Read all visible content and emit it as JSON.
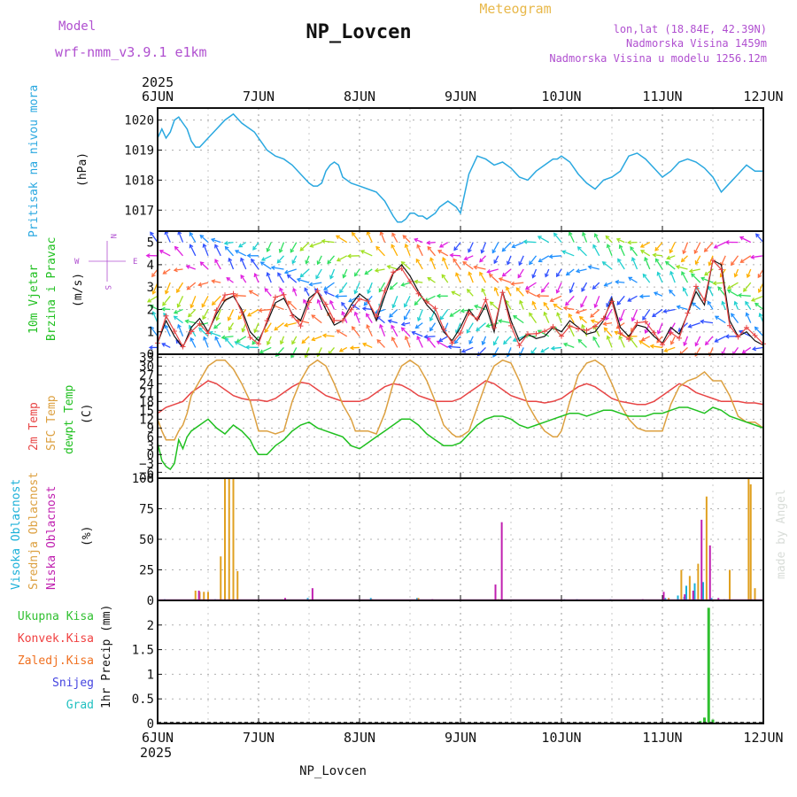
{
  "header": {
    "model_label": "Model",
    "model_name": "wrf-nmm_v3.9.1 e1km",
    "station": "NP_Lovcen",
    "product": "Meteogram",
    "coords": "lon,lat (18.84E, 42.39N)",
    "elevation": "Nadmorska Visina 1459m",
    "model_elevation": "Nadmorska Visina u modelu 1256.12m",
    "year": "2025",
    "footer_station": "NP_Lovcen",
    "watermark": "made by Angel"
  },
  "colors": {
    "pressure": "#2aa8e0",
    "temp2m": "#e84646",
    "sfc": "#dca040",
    "dew": "#20c020",
    "wind_obs": "#e84646",
    "high_cloud": "#1ab0d8",
    "mid_cloud": "#e0a020",
    "low_cloud": "#c020b0",
    "total_precip": "#30c030",
    "conv_precip": "#f04040",
    "frz_precip": "#f07020",
    "snow": "#4444e0",
    "hail": "#20c0c0",
    "title_purple": "#b050d0"
  },
  "chart_data": [
    {
      "type": "line",
      "panel": "pressure",
      "ylabel_left": "Pritisak na nivou mora",
      "ylabel": "(hPa)",
      "x_ticks": [
        "6JUN",
        "7JUN",
        "8JUN",
        "9JUN",
        "10JUN",
        "11JUN",
        "12JUN"
      ],
      "xlim": [
        0,
        144
      ],
      "ylim": [
        1016.3,
        1020.4
      ],
      "y_ticks": [
        1017,
        1018,
        1019,
        1020
      ],
      "grid": true,
      "series": [
        {
          "x": [
            0,
            1,
            2,
            3,
            4,
            5,
            6,
            7,
            8,
            9,
            10,
            12,
            14,
            16,
            18,
            20,
            22,
            23,
            24,
            25,
            26,
            27,
            28,
            30,
            32,
            34,
            36,
            37,
            38,
            39,
            40,
            41,
            42,
            43,
            44,
            46,
            48,
            50,
            52,
            54,
            56,
            57,
            58,
            59,
            60,
            61,
            62,
            63,
            64,
            65,
            66,
            67,
            68,
            69,
            70,
            71,
            72,
            74,
            76,
            78,
            80,
            82,
            84,
            86,
            88,
            90,
            92,
            94,
            95,
            96,
            97,
            98,
            100,
            102,
            104,
            106,
            108,
            110,
            112,
            114,
            116,
            118,
            120,
            122,
            124,
            126,
            128,
            130,
            132,
            134,
            136,
            138,
            140,
            142,
            144
          ],
          "y": [
            1019.4,
            1019.7,
            1019.4,
            1019.6,
            1020.0,
            1020.1,
            1019.9,
            1019.7,
            1019.3,
            1019.1,
            1019.1,
            1019.4,
            1019.7,
            1020.0,
            1020.2,
            1019.9,
            1019.7,
            1019.6,
            1019.4,
            1019.2,
            1019.0,
            1018.9,
            1018.8,
            1018.7,
            1018.5,
            1018.2,
            1017.9,
            1017.8,
            1017.8,
            1017.9,
            1018.3,
            1018.5,
            1018.6,
            1018.5,
            1018.1,
            1017.9,
            1017.8,
            1017.7,
            1017.6,
            1017.3,
            1016.8,
            1016.6,
            1016.6,
            1016.7,
            1016.9,
            1016.9,
            1016.8,
            1016.8,
            1016.7,
            1016.8,
            1016.9,
            1017.1,
            1017.2,
            1017.3,
            1017.2,
            1017.1,
            1016.9,
            1018.2,
            1018.8,
            1018.7,
            1018.5,
            1018.6,
            1018.4,
            1018.1,
            1018.0,
            1018.3,
            1018.5,
            1018.7,
            1018.7,
            1018.8,
            1018.7,
            1018.6,
            1018.2,
            1017.9,
            1017.7,
            1018.0,
            1018.1,
            1018.3,
            1018.8,
            1018.9,
            1018.7,
            1018.4,
            1018.1,
            1018.3,
            1018.6,
            1018.7,
            1018.6,
            1018.4,
            1018.1,
            1017.6,
            1017.9,
            1018.2,
            1018.5,
            1018.3,
            1018.3
          ]
        }
      ]
    },
    {
      "type": "line",
      "panel": "wind",
      "ylabel_left": [
        "10m Vjetar",
        "Brzina i Pravac"
      ],
      "ylabel": "(m/s)",
      "compass": {
        "n": "N",
        "s": "S",
        "e": "E",
        "w": "W"
      },
      "xlim": [
        0,
        144
      ],
      "ylim": [
        0,
        5.5
      ],
      "y_ticks": [
        0,
        1,
        2,
        3,
        4,
        5
      ],
      "grid": true,
      "series": [
        {
          "x": [
            0,
            2,
            4,
            6,
            8,
            10,
            12,
            14,
            16,
            18,
            20,
            22,
            24,
            26,
            28,
            30,
            32,
            34,
            36,
            38,
            40,
            42,
            44,
            46,
            48,
            50,
            52,
            54,
            56,
            58,
            60,
            62,
            64,
            66,
            68,
            70,
            72,
            74,
            76,
            78,
            80,
            82,
            84,
            86,
            88,
            90,
            92,
            94,
            96,
            98,
            100,
            102,
            104,
            106,
            108,
            110,
            112,
            114,
            116,
            118,
            120,
            122,
            124,
            126,
            128,
            130,
            132,
            134,
            136,
            138,
            140,
            142,
            144
          ],
          "y": [
            0.5,
            1.5,
            0.8,
            0.3,
            1.2,
            1.6,
            1.0,
            1.8,
            2.4,
            2.6,
            2.0,
            1.0,
            0.6,
            1.4,
            2.3,
            2.5,
            1.8,
            1.5,
            2.5,
            2.8,
            2.0,
            1.3,
            1.5,
            2.2,
            2.7,
            2.4,
            1.5,
            2.6,
            3.6,
            4.0,
            3.5,
            2.8,
            2.2,
            1.8,
            1.0,
            0.6,
            1.2,
            2.0,
            1.5,
            2.2,
            1.0,
            2.8,
            1.5,
            0.6,
            0.9,
            0.7,
            0.8,
            1.2,
            1.0,
            1.5,
            1.2,
            0.9,
            1.0,
            1.5,
            2.5,
            1.2,
            0.8,
            1.3,
            1.2,
            0.8,
            0.5,
            1.2,
            0.9,
            1.8,
            2.8,
            2.2,
            4.2,
            4.0,
            1.5,
            0.8,
            1.0,
            0.6,
            0.4
          ]
        }
      ]
    },
    {
      "type": "line",
      "panel": "temperature",
      "ylabel_left": [
        "2m Temp",
        "SFC Temp",
        "dewpt Temp"
      ],
      "ylabel": "(C)",
      "xlim": [
        0,
        144
      ],
      "ylim": [
        -8,
        34
      ],
      "y_ticks": [
        -8,
        -6,
        -3,
        0,
        3,
        6,
        9,
        12,
        15,
        18,
        21,
        24,
        27,
        30,
        33
      ],
      "grid": true,
      "series": [
        {
          "name": "2m Temp",
          "x": [
            0,
            2,
            4,
            6,
            8,
            10,
            12,
            14,
            16,
            18,
            20,
            22,
            24,
            26,
            28,
            30,
            32,
            34,
            36,
            38,
            40,
            42,
            44,
            46,
            48,
            50,
            52,
            54,
            56,
            58,
            60,
            62,
            64,
            66,
            68,
            70,
            72,
            74,
            76,
            78,
            80,
            82,
            84,
            86,
            88,
            90,
            92,
            94,
            96,
            98,
            100,
            102,
            104,
            106,
            108,
            110,
            112,
            114,
            116,
            118,
            120,
            122,
            124,
            126,
            128,
            130,
            132,
            134,
            136,
            138,
            140,
            142,
            144
          ],
          "y": [
            14,
            16,
            17,
            18,
            21,
            23,
            25,
            24,
            22,
            20,
            19,
            18.5,
            18.5,
            18,
            19,
            21,
            23,
            24.5,
            24,
            22,
            20,
            19,
            18,
            18,
            18,
            19,
            21,
            23,
            24,
            23.5,
            22,
            20,
            19,
            18,
            18,
            18,
            19,
            21,
            23,
            25,
            24,
            22,
            20,
            19,
            18,
            18,
            17.5,
            18,
            19,
            21,
            23,
            24,
            23,
            21,
            19,
            18,
            17.5,
            17,
            17,
            18,
            20,
            22,
            24,
            23,
            21,
            20,
            19,
            18,
            18,
            18,
            17.5,
            17.5,
            17
          ]
        },
        {
          "name": "SFC Temp",
          "x": [
            0,
            1,
            2,
            3,
            4,
            5,
            6,
            7,
            8,
            10,
            12,
            14,
            16,
            18,
            20,
            22,
            23,
            24,
            26,
            28,
            30,
            32,
            34,
            36,
            38,
            40,
            42,
            44,
            46,
            47,
            48,
            50,
            52,
            54,
            56,
            58,
            60,
            62,
            64,
            66,
            68,
            70,
            71,
            72,
            74,
            76,
            78,
            80,
            82,
            84,
            86,
            88,
            90,
            92,
            94,
            95,
            96,
            98,
            100,
            102,
            104,
            106,
            108,
            110,
            112,
            114,
            116,
            118,
            119,
            120,
            122,
            124,
            126,
            128,
            130,
            132,
            134,
            136,
            138,
            140,
            142,
            144
          ],
          "y": [
            12,
            8,
            5,
            5,
            5,
            8,
            10,
            14,
            20,
            25,
            30,
            32,
            32,
            29,
            24,
            18,
            13,
            8,
            8,
            7,
            8,
            18,
            25,
            30,
            32,
            30,
            24,
            17,
            12,
            8,
            8,
            8,
            7,
            14,
            24,
            30,
            32,
            30,
            25,
            18,
            10,
            7,
            6,
            6,
            8,
            16,
            24,
            30,
            32,
            31,
            25,
            17,
            12,
            8,
            6,
            6,
            8,
            18,
            27,
            31,
            32,
            30,
            24,
            17,
            12,
            9,
            8,
            8,
            8,
            8,
            17,
            23,
            25,
            26,
            28,
            25,
            25,
            20,
            13,
            11,
            11,
            9
          ]
        },
        {
          "name": "dewpt Temp",
          "x": [
            0,
            1,
            2,
            3,
            4,
            5,
            6,
            7,
            8,
            10,
            12,
            14,
            16,
            18,
            20,
            22,
            23,
            24,
            26,
            28,
            30,
            32,
            34,
            36,
            38,
            40,
            42,
            44,
            46,
            48,
            50,
            52,
            54,
            56,
            58,
            60,
            62,
            64,
            66,
            68,
            70,
            72,
            74,
            76,
            78,
            80,
            82,
            84,
            86,
            88,
            90,
            92,
            94,
            96,
            98,
            100,
            102,
            104,
            106,
            108,
            110,
            112,
            114,
            116,
            118,
            120,
            122,
            124,
            126,
            128,
            130,
            132,
            134,
            136,
            138,
            140,
            142,
            144
          ],
          "y": [
            4,
            -2,
            -4,
            -5,
            -3,
            5,
            2,
            6,
            8,
            10,
            12,
            9,
            7,
            10,
            8,
            5,
            2,
            0,
            0,
            3,
            5,
            8,
            10,
            11,
            9,
            8,
            7,
            6,
            3,
            2,
            4,
            6,
            8,
            10,
            12,
            12,
            10,
            7,
            5,
            3,
            3,
            4,
            7,
            10,
            12,
            13,
            13,
            12,
            10,
            9,
            10,
            11,
            12,
            13,
            14,
            14,
            13,
            14,
            15,
            15,
            14,
            13,
            13,
            13,
            14,
            14,
            15,
            16,
            16,
            15,
            14,
            16,
            15,
            13,
            12,
            11,
            10,
            9
          ]
        }
      ]
    },
    {
      "type": "bar",
      "panel": "cloud",
      "ylabel_left": [
        "Visoka Oblacnost",
        "Srednja Oblacnost",
        "Niska Oblacnost"
      ],
      "ylabel": "(%)",
      "xlim": [
        0,
        144
      ],
      "ylim": [
        0,
        100
      ],
      "y_ticks": [
        0,
        25,
        50,
        75,
        100
      ],
      "grid": true,
      "series": [
        {
          "name": "Visoka Oblacnost",
          "x": [
            2,
            9,
            14,
            36,
            51,
            62,
            97,
            100,
            108,
            121,
            124,
            125.5,
            126,
            128,
            130,
            132,
            135,
            141.5
          ],
          "y": [
            1,
            1,
            1,
            2,
            2,
            2,
            1,
            1,
            1,
            2,
            4,
            3,
            12,
            14,
            15,
            2,
            1,
            1
          ]
        },
        {
          "name": "Srednja Oblacnost",
          "x": [
            9,
            10,
            11,
            12,
            15,
            16,
            17,
            18,
            19,
            51,
            62,
            81,
            121.5,
            124.5,
            126.5,
            128.5,
            130.5,
            136,
            140.5,
            141,
            142
          ],
          "y": [
            8,
            7,
            7,
            7,
            36,
            100,
            100,
            100,
            24,
            1,
            2,
            1,
            2,
            25,
            20,
            30,
            85,
            25,
            100,
            95,
            10
          ]
        },
        {
          "name": "Niska Oblacnost",
          "x": [
            9.5,
            30,
            36.5,
            65,
            80,
            81.5,
            115,
            120,
            125,
            127,
            129,
            131,
            133
          ],
          "y": [
            8,
            2,
            10,
            1,
            13,
            64,
            1,
            7,
            5,
            8,
            66,
            45,
            2
          ]
        }
      ]
    },
    {
      "type": "bar",
      "panel": "precip",
      "ylabel_left": [
        "Ukupna Kisa",
        "Konvek.Kisa",
        "Zaledj.Kisa",
        "Snijeg",
        "Grad"
      ],
      "ylabel": "1hr Precip (mm)",
      "xlim": [
        0,
        144
      ],
      "ylim": [
        0,
        2.5
      ],
      "y_ticks": [
        0,
        0.5,
        1,
        1.5,
        2
      ],
      "grid": true,
      "series": [
        {
          "name": "Ukupna Kisa",
          "x": [
            129,
            130,
            131,
            132,
            133
          ],
          "y": [
            0.05,
            0.12,
            2.35,
            0.08,
            0.02
          ]
        }
      ]
    }
  ]
}
